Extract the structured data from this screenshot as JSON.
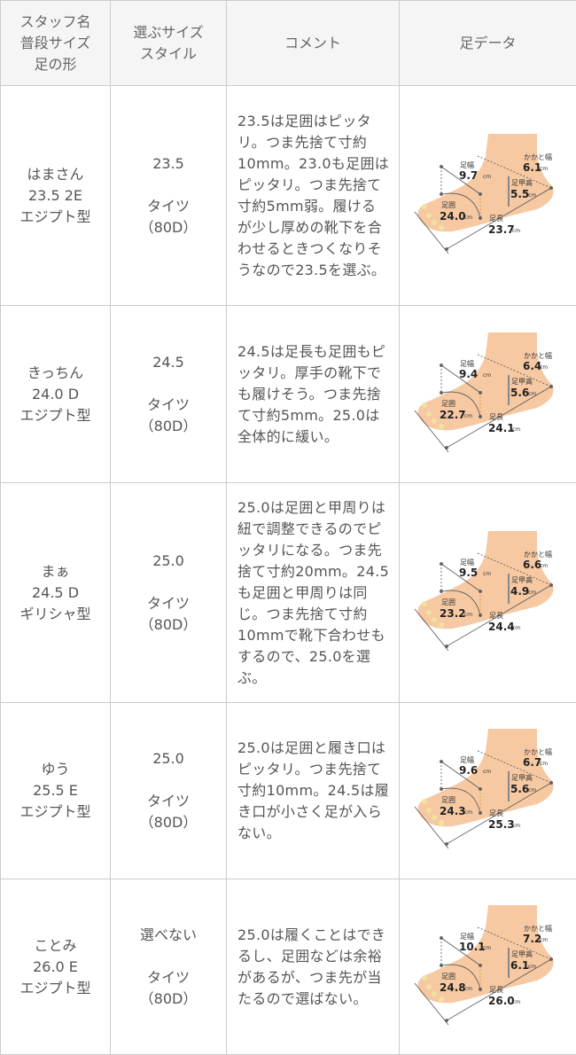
{
  "header": {
    "col1": [
      "スタッフ名",
      "普段サイズ",
      "足の形"
    ],
    "col2": [
      "選ぶサイズ",
      "スタイル"
    ],
    "col3": "コメント",
    "col4": "足データ"
  },
  "foot_labels": {
    "width": "足幅",
    "heel": "かかと幅",
    "instep": "足甲高",
    "girth": "足囲",
    "length": "足長",
    "unit": "cm"
  },
  "colors": {
    "skin": "#f6c9a3",
    "border": "#cccccc",
    "header_bg": "#f5f5f5"
  },
  "rows": [
    {
      "name": "はまさん",
      "size": "23.5 2E",
      "shape": "エジプト型",
      "choice": "23.5",
      "style": "タイツ",
      "den": "（80D）",
      "comment": "23.5は足囲はピッタリ。つま先捨て寸約10mm。23.0も足囲はピッタリ。つま先捨て寸約5mm弱。履けるが少し厚めの靴下を合わせるときつくなりそうなので23.5を選ぶ。",
      "foot": {
        "width": "9.7",
        "heel": "6.1",
        "instep": "5.5",
        "girth": "24.0",
        "length": "23.7"
      }
    },
    {
      "name": "きっちん",
      "size": "24.0 D",
      "shape": "エジプト型",
      "choice": "24.5",
      "style": "タイツ",
      "den": "（80D）",
      "comment": "24.5は足長も足囲もピッタリ。厚手の靴下でも履けそう。つま先捨て寸約5mm。25.0は全体的に緩い。",
      "foot": {
        "width": "9.4",
        "heel": "6.4",
        "instep": "5.6",
        "girth": "22.7",
        "length": "24.1"
      }
    },
    {
      "name": "まぁ",
      "size": "24.5 D",
      "shape": "ギリシャ型",
      "choice": "25.0",
      "style": "タイツ",
      "den": "（80D）",
      "comment": "25.0は足囲と甲周りは紐で調整できるのでピッタリになる。つま先捨て寸約20mm。24.5も足囲と甲周りは同じ。つま先捨て寸約10mmで靴下合わせもするので、25.0を選ぶ。",
      "foot": {
        "width": "9.5",
        "heel": "6.6",
        "instep": "4.9",
        "girth": "23.2",
        "length": "24.4"
      }
    },
    {
      "name": "ゆう",
      "size": "25.5 E",
      "shape": "エジプト型",
      "choice": "25.0",
      "style": "タイツ",
      "den": "（80D）",
      "comment": "25.0は足囲と履き口はピッタリ。つま先捨て寸約10mm。24.5は履き口が小さく足が入らない。",
      "foot": {
        "width": "9.6",
        "heel": "6.7",
        "instep": "5.6",
        "girth": "24.3",
        "length": "25.3"
      }
    },
    {
      "name": "ことみ",
      "size": "26.0 E",
      "shape": "エジプト型",
      "choice": "選べない",
      "style": "タイツ",
      "den": "（80D）",
      "comment": "25.0は履くことはできるし、足囲などは余裕があるが、つま先が当たるので選ばない。",
      "foot": {
        "width": "10.1",
        "heel": "7.2",
        "instep": "6.1",
        "girth": "24.8",
        "length": "26.0"
      }
    }
  ]
}
